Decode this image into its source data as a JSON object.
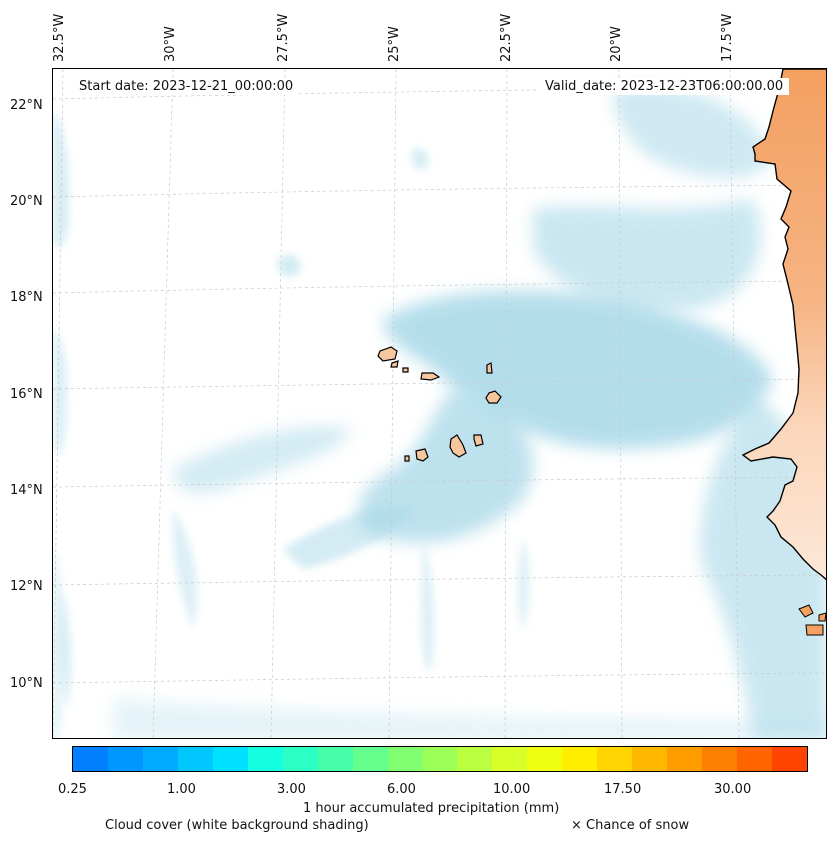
{
  "header": {
    "start_date": "Start date: 2023-12-21_00:00:00",
    "valid_date": "Valid_date: 2023-12-23T06:00:00.00"
  },
  "longitude_labels": [
    "32.5°W",
    "30°W",
    "27.5°W",
    "25°W",
    "22.5°W",
    "20°W",
    "17.5°W"
  ],
  "latitude_labels": [
    "22°N",
    "20°N",
    "18°N",
    "16°N",
    "14°N",
    "12°N",
    "10°N"
  ],
  "colorbar": {
    "colors": [
      "#0080ff",
      "#0096ff",
      "#00aaff",
      "#00c8ff",
      "#00e0ff",
      "#14ffe0",
      "#2cffc4",
      "#46ffa8",
      "#64ff8c",
      "#80ff70",
      "#9cff58",
      "#bcff40",
      "#d8ff28",
      "#f0ff10",
      "#ffee00",
      "#ffd400",
      "#ffb800",
      "#ff9c00",
      "#ff8000",
      "#ff6400",
      "#ff4400"
    ],
    "ticks": [
      "0.25",
      "1.00",
      "3.00",
      "6.00",
      "10.00",
      "17.50",
      "30.00"
    ],
    "label": "1 hour accumulated precipitation (mm)"
  },
  "legend": {
    "cloud_cover": "Cloud cover (white background shading)",
    "snow": "× Chance of snow"
  },
  "colors": {
    "cloud": "#a8d8e8",
    "land": "#f4a060",
    "island": "#f6c79e"
  }
}
